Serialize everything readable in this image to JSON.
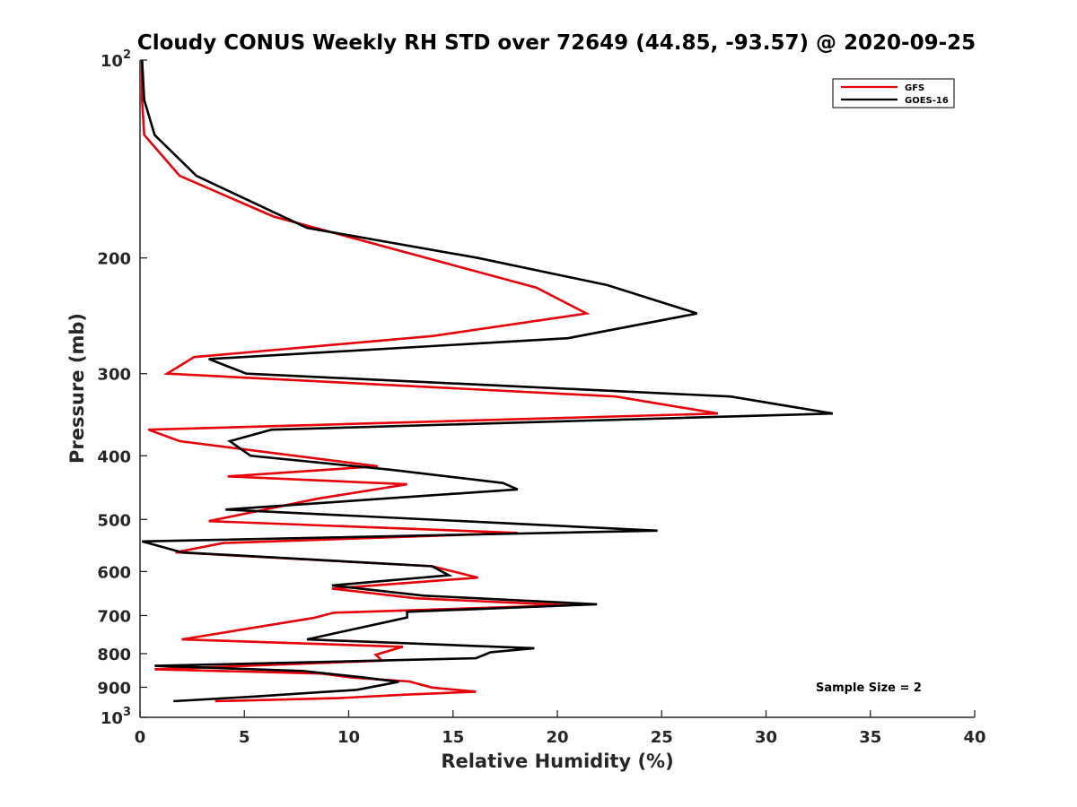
{
  "chart_data": {
    "type": "line",
    "title": "Cloudy CONUS Weekly RH STD over 72649 (44.85, -93.57) @ 2020-09-25",
    "xlabel": "Relative Humidity (%)",
    "ylabel": "Pressure (mb)",
    "xlim": [
      0,
      40
    ],
    "ylim": [
      100,
      1000
    ],
    "y_scale": "log",
    "y_reversed": true,
    "grid": false,
    "x_ticks": [
      "0",
      "5",
      "10",
      "15",
      "20",
      "25",
      "30",
      "35",
      "40"
    ],
    "y_ticks": [
      {
        "value": 100,
        "base": "10",
        "exp": "2"
      },
      {
        "value": 200,
        "label": "200"
      },
      {
        "value": 300,
        "label": "300"
      },
      {
        "value": 400,
        "label": "400"
      },
      {
        "value": 500,
        "label": "500"
      },
      {
        "value": 600,
        "label": "600"
      },
      {
        "value": 700,
        "label": "700"
      },
      {
        "value": 800,
        "label": "800"
      },
      {
        "value": 900,
        "label": "900"
      },
      {
        "value": 1000,
        "base": "10",
        "exp": "3"
      }
    ],
    "legend_position": "top-right",
    "annotation": "Sample Size = 2",
    "series": [
      {
        "name": "GFS",
        "color": "#e6000a",
        "points": [
          [
            0.1,
            100
          ],
          [
            0.1,
            115
          ],
          [
            0.2,
            130
          ],
          [
            1.9,
            150
          ],
          [
            6.4,
            173
          ],
          [
            19.0,
            222
          ],
          [
            21.4,
            243
          ],
          [
            14.0,
            263
          ],
          [
            2.6,
            283
          ],
          [
            1.3,
            300
          ],
          [
            22.8,
            325
          ],
          [
            27.7,
            345
          ],
          [
            0.4,
            365
          ],
          [
            1.9,
            380
          ],
          [
            11.4,
            415
          ],
          [
            4.2,
            430
          ],
          [
            12.8,
            442
          ],
          [
            8.5,
            465
          ],
          [
            3.3,
            503
          ],
          [
            18.1,
            524
          ],
          [
            4.0,
            543
          ],
          [
            1.7,
            561
          ],
          [
            14.0,
            589
          ],
          [
            16.2,
            613
          ],
          [
            9.2,
            637
          ],
          [
            13.2,
            659
          ],
          [
            20.5,
            675
          ],
          [
            9.3,
            693
          ],
          [
            8.3,
            706
          ],
          [
            2.0,
            761
          ],
          [
            12.6,
            781
          ],
          [
            11.3,
            803
          ],
          [
            11.6,
            820
          ],
          [
            0.7,
            845
          ],
          [
            8.7,
            858
          ],
          [
            10.2,
            870
          ],
          [
            12.9,
            882
          ],
          [
            14.0,
            901
          ],
          [
            16.1,
            914
          ],
          [
            12.6,
            924
          ],
          [
            9.5,
            935
          ],
          [
            3.6,
            945
          ]
        ]
      },
      {
        "name": "GOES-16",
        "color": "#000000",
        "points": [
          [
            0.1,
            100
          ],
          [
            0.2,
            115
          ],
          [
            0.7,
            130
          ],
          [
            2.7,
            150
          ],
          [
            8.0,
            180
          ],
          [
            16.2,
            200
          ],
          [
            22.4,
            220
          ],
          [
            26.7,
            243
          ],
          [
            20.5,
            265
          ],
          [
            3.3,
            285
          ],
          [
            5.1,
            300
          ],
          [
            28.3,
            325
          ],
          [
            33.2,
            345
          ],
          [
            6.3,
            365
          ],
          [
            4.3,
            380
          ],
          [
            5.3,
            400
          ],
          [
            12.0,
            420
          ],
          [
            17.4,
            440
          ],
          [
            18.1,
            450
          ],
          [
            4.1,
            483
          ],
          [
            24.8,
            520
          ],
          [
            0.1,
            540
          ],
          [
            2.0,
            561
          ],
          [
            14.0,
            589
          ],
          [
            14.8,
            608
          ],
          [
            9.2,
            630
          ],
          [
            13.6,
            653
          ],
          [
            21.9,
            673
          ],
          [
            12.8,
            691
          ],
          [
            12.8,
            705
          ],
          [
            8.0,
            761
          ],
          [
            18.9,
            785
          ],
          [
            16.8,
            796
          ],
          [
            16.1,
            813
          ],
          [
            0.7,
            835
          ],
          [
            7.8,
            850
          ],
          [
            10.5,
            868
          ],
          [
            12.4,
            883
          ],
          [
            10.4,
            908
          ],
          [
            5.4,
            930
          ],
          [
            1.6,
            945
          ]
        ]
      }
    ]
  }
}
